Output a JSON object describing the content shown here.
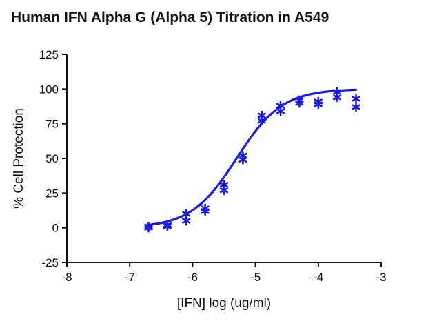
{
  "chart_data": {
    "type": "scatter",
    "title": "Human IFN Alpha G (Alpha 5) Titration in A549",
    "xlabel": "[IFN] log (ug/ml)",
    "ylabel": "% Cell Protection",
    "xlim": [
      -8,
      -3
    ],
    "ylim": [
      -25,
      125
    ],
    "x_ticks": [
      -8,
      -7,
      -6,
      -5,
      -4,
      -3
    ],
    "y_ticks": [
      -25,
      0,
      25,
      50,
      75,
      100,
      125
    ],
    "grid": false,
    "legend": "none",
    "colors": {
      "series": "#1a1ae6",
      "axes": "#111111"
    },
    "series": [
      {
        "marker": "asterisk",
        "points": [
          {
            "x": -6.7,
            "y": 0
          },
          {
            "x": -6.7,
            "y": 1
          },
          {
            "x": -6.4,
            "y": 1
          },
          {
            "x": -6.4,
            "y": 2
          },
          {
            "x": -6.1,
            "y": 5
          },
          {
            "x": -6.1,
            "y": 10
          },
          {
            "x": -5.8,
            "y": 12
          },
          {
            "x": -5.8,
            "y": 14
          },
          {
            "x": -5.5,
            "y": 27
          },
          {
            "x": -5.5,
            "y": 31
          },
          {
            "x": -5.2,
            "y": 49
          },
          {
            "x": -5.2,
            "y": 52
          },
          {
            "x": -4.9,
            "y": 77
          },
          {
            "x": -4.9,
            "y": 81
          },
          {
            "x": -4.6,
            "y": 84
          },
          {
            "x": -4.6,
            "y": 88
          },
          {
            "x": -4.3,
            "y": 90
          },
          {
            "x": -4.3,
            "y": 92
          },
          {
            "x": -4.0,
            "y": 89
          },
          {
            "x": -4.0,
            "y": 91
          },
          {
            "x": -3.7,
            "y": 94
          },
          {
            "x": -3.7,
            "y": 98
          },
          {
            "x": -3.4,
            "y": 87
          },
          {
            "x": -3.4,
            "y": 93
          }
        ]
      }
    ],
    "fit": {
      "model": "sigmoidal dose-response",
      "bottom": 0,
      "top": 100,
      "log_ec50": -5.3,
      "hill_slope": 1.2,
      "x_range": [
        -6.7,
        -3.4
      ]
    }
  }
}
